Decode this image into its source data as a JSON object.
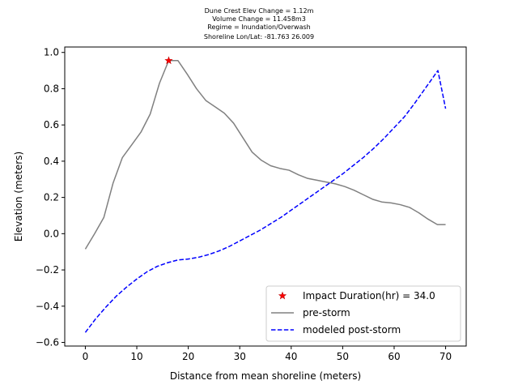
{
  "chart_data": {
    "type": "line",
    "title_lines": [
      "Dune Crest Elev Change = 1.12m",
      "Volume Change = 11.458m3",
      "Regime = Inundation/Overwash",
      "Shoreline Lon/Lat: -81.763 26.009"
    ],
    "xlabel": "Distance from mean shoreline (meters)",
    "ylabel": "Elevation (meters)",
    "xlim": [
      -4,
      74
    ],
    "ylim": [
      -0.62,
      1.03
    ],
    "xticks": [
      0,
      10,
      20,
      30,
      40,
      50,
      60,
      70
    ],
    "yticks": [
      -0.6,
      -0.4,
      -0.2,
      0.0,
      0.2,
      0.4,
      0.6,
      0.8,
      1.0
    ],
    "xtick_labels": [
      "0",
      "10",
      "20",
      "30",
      "40",
      "50",
      "60",
      "70"
    ],
    "ytick_labels": [
      "−0.6",
      "−0.4",
      "−0.2",
      "0.0",
      "0.2",
      "0.4",
      "0.6",
      "0.8",
      "1.0"
    ],
    "grid": false,
    "legend_position": "lower-right",
    "series": [
      {
        "name": "pre-storm",
        "kind": "line",
        "style": "solid",
        "color": "#808080",
        "x": [
          0,
          1.8,
          3.6,
          5.4,
          7.2,
          9,
          10.8,
          12.6,
          14.4,
          16.2,
          18,
          19.8,
          21.6,
          23.4,
          25.2,
          27,
          28.8,
          30.6,
          32.4,
          34.2,
          36,
          37.8,
          39.6,
          41.4,
          43.2,
          45,
          46.8,
          48.6,
          50.4,
          52.2,
          54,
          55.8,
          57.6,
          59.4,
          61.2,
          63,
          64.8,
          66.6,
          68.4,
          70
        ],
        "y": [
          -0.085,
          0.0,
          0.09,
          0.28,
          0.42,
          0.49,
          0.56,
          0.66,
          0.83,
          0.955,
          0.955,
          0.88,
          0.8,
          0.735,
          0.7,
          0.665,
          0.61,
          0.53,
          0.45,
          0.405,
          0.375,
          0.36,
          0.35,
          0.325,
          0.305,
          0.295,
          0.285,
          0.275,
          0.26,
          0.24,
          0.215,
          0.19,
          0.175,
          0.17,
          0.16,
          0.145,
          0.115,
          0.08,
          0.05,
          0.05
        ]
      },
      {
        "name": "modeled post-storm",
        "kind": "line",
        "style": "dashed",
        "color": "#0000ff",
        "x": [
          0,
          2,
          4,
          6,
          8,
          10,
          12,
          14,
          16,
          18,
          20,
          22,
          24,
          26,
          28,
          30,
          32,
          34,
          36,
          38,
          40,
          42,
          44,
          46,
          48,
          50,
          52,
          54,
          56,
          58,
          60,
          62,
          64,
          66,
          67.5,
          68.5,
          70
        ],
        "y": [
          -0.545,
          -0.47,
          -0.405,
          -0.345,
          -0.295,
          -0.25,
          -0.21,
          -0.18,
          -0.16,
          -0.145,
          -0.14,
          -0.13,
          -0.115,
          -0.095,
          -0.07,
          -0.04,
          -0.01,
          0.02,
          0.055,
          0.09,
          0.13,
          0.17,
          0.21,
          0.25,
          0.29,
          0.33,
          0.375,
          0.42,
          0.47,
          0.525,
          0.585,
          0.645,
          0.72,
          0.8,
          0.86,
          0.9,
          0.69
        ]
      },
      {
        "name": "Impact Duration(hr) = 34.0",
        "kind": "marker",
        "marker": "star",
        "color": "#ff0000",
        "x": [
          16.2
        ],
        "y": [
          0.955
        ]
      }
    ]
  }
}
